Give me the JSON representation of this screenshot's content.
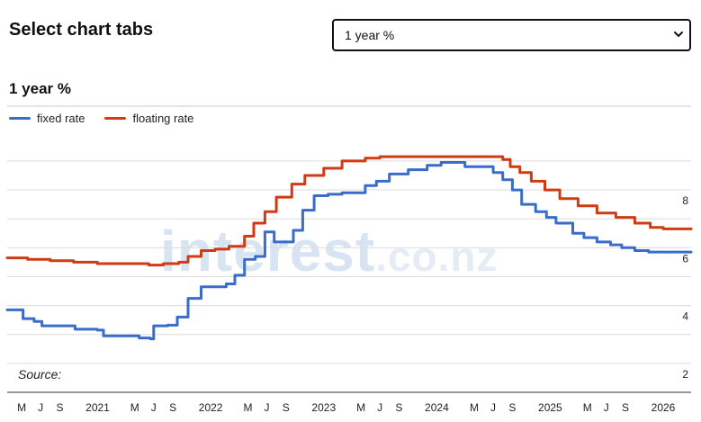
{
  "header": {
    "title": "Select chart tabs"
  },
  "tab_select": {
    "selected": "1 year %"
  },
  "source": {
    "label": "Source:"
  },
  "watermark": {
    "main": "interest",
    "domain": ".co.nz"
  },
  "chart_data": {
    "type": "line",
    "title": "1 year %",
    "xlabel": "",
    "ylabel": "",
    "ylim": [
      1.0,
      9.9
    ],
    "yticks": [
      2,
      4,
      6,
      8
    ],
    "xlim": [
      "2020-03-15",
      "2026-04-01"
    ],
    "xticks": [
      {
        "date": "2020-05-01",
        "label": "M"
      },
      {
        "date": "2020-07-01",
        "label": "J"
      },
      {
        "date": "2020-09-01",
        "label": "S"
      },
      {
        "date": "2021-01-01",
        "label": "2021"
      },
      {
        "date": "2021-05-01",
        "label": "M"
      },
      {
        "date": "2021-07-01",
        "label": "J"
      },
      {
        "date": "2021-09-01",
        "label": "S"
      },
      {
        "date": "2022-01-01",
        "label": "2022"
      },
      {
        "date": "2022-05-01",
        "label": "M"
      },
      {
        "date": "2022-07-01",
        "label": "J"
      },
      {
        "date": "2022-09-01",
        "label": "S"
      },
      {
        "date": "2023-01-01",
        "label": "2023"
      },
      {
        "date": "2023-05-01",
        "label": "M"
      },
      {
        "date": "2023-07-01",
        "label": "J"
      },
      {
        "date": "2023-09-01",
        "label": "S"
      },
      {
        "date": "2024-01-01",
        "label": "2024"
      },
      {
        "date": "2024-05-01",
        "label": "M"
      },
      {
        "date": "2024-07-01",
        "label": "J"
      },
      {
        "date": "2024-09-01",
        "label": "S"
      },
      {
        "date": "2025-01-01",
        "label": "2025"
      },
      {
        "date": "2025-05-01",
        "label": "M"
      },
      {
        "date": "2025-07-01",
        "label": "J"
      },
      {
        "date": "2025-09-01",
        "label": "S"
      },
      {
        "date": "2026-01-01",
        "label": "2026"
      }
    ],
    "grid": true,
    "legend_position": "top-left",
    "series": [
      {
        "name": "fixed rate",
        "color": "#3a6cc9",
        "points": [
          [
            "2020-03-15",
            3.85
          ],
          [
            "2020-04-15",
            3.85
          ],
          [
            "2020-05-05",
            3.55
          ],
          [
            "2020-06-10",
            3.45
          ],
          [
            "2020-07-05",
            3.3
          ],
          [
            "2020-08-15",
            3.3
          ],
          [
            "2020-09-25",
            3.3
          ],
          [
            "2020-10-20",
            3.18
          ],
          [
            "2020-12-31",
            3.15
          ],
          [
            "2021-01-20",
            2.95
          ],
          [
            "2021-03-15",
            2.95
          ],
          [
            "2021-05-15",
            2.88
          ],
          [
            "2021-06-20",
            2.85
          ],
          [
            "2021-07-01",
            3.3
          ],
          [
            "2021-08-15",
            3.32
          ],
          [
            "2021-09-15",
            3.6
          ],
          [
            "2021-10-20",
            4.25
          ],
          [
            "2021-12-01",
            4.65
          ],
          [
            "2022-01-15",
            4.65
          ],
          [
            "2022-02-20",
            4.75
          ],
          [
            "2022-03-20",
            5.05
          ],
          [
            "2022-04-20",
            5.6
          ],
          [
            "2022-05-25",
            5.7
          ],
          [
            "2022-06-25",
            6.55
          ],
          [
            "2022-07-25",
            6.2
          ],
          [
            "2022-08-25",
            6.2
          ],
          [
            "2022-09-25",
            6.6
          ],
          [
            "2022-10-25",
            7.3
          ],
          [
            "2022-12-01",
            7.8
          ],
          [
            "2023-01-15",
            7.85
          ],
          [
            "2023-03-01",
            7.9
          ],
          [
            "2023-04-01",
            7.9
          ],
          [
            "2023-05-15",
            8.15
          ],
          [
            "2023-06-20",
            8.3
          ],
          [
            "2023-08-01",
            8.55
          ],
          [
            "2023-10-01",
            8.7
          ],
          [
            "2023-12-01",
            8.85
          ],
          [
            "2024-01-15",
            8.95
          ],
          [
            "2024-03-01",
            8.95
          ],
          [
            "2024-04-01",
            8.8
          ],
          [
            "2024-05-15",
            8.8
          ],
          [
            "2024-07-01",
            8.6
          ],
          [
            "2024-08-01",
            8.35
          ],
          [
            "2024-09-01",
            8.0
          ],
          [
            "2024-10-01",
            7.5
          ],
          [
            "2024-11-15",
            7.25
          ],
          [
            "2024-12-20",
            7.05
          ],
          [
            "2025-01-20",
            6.85
          ],
          [
            "2025-03-15",
            6.5
          ],
          [
            "2025-04-20",
            6.35
          ],
          [
            "2025-06-01",
            6.2
          ],
          [
            "2025-07-15",
            6.1
          ],
          [
            "2025-08-20",
            6.0
          ],
          [
            "2025-10-01",
            5.9
          ],
          [
            "2025-11-15",
            5.85
          ],
          [
            "2026-01-01",
            5.85
          ],
          [
            "2026-04-01",
            5.85
          ]
        ]
      },
      {
        "name": "floating rate",
        "color": "#d13b14",
        "points": [
          [
            "2020-03-15",
            5.65
          ],
          [
            "2020-05-20",
            5.6
          ],
          [
            "2020-08-01",
            5.55
          ],
          [
            "2020-10-15",
            5.5
          ],
          [
            "2020-12-31",
            5.45
          ],
          [
            "2021-02-01",
            5.45
          ],
          [
            "2021-04-15",
            5.45
          ],
          [
            "2021-06-15",
            5.4
          ],
          [
            "2021-08-01",
            5.45
          ],
          [
            "2021-09-20",
            5.5
          ],
          [
            "2021-10-20",
            5.7
          ],
          [
            "2021-12-01",
            5.9
          ],
          [
            "2022-01-15",
            5.95
          ],
          [
            "2022-03-01",
            6.05
          ],
          [
            "2022-04-20",
            6.4
          ],
          [
            "2022-05-20",
            6.85
          ],
          [
            "2022-06-25",
            7.25
          ],
          [
            "2022-08-01",
            7.75
          ],
          [
            "2022-09-20",
            8.2
          ],
          [
            "2022-11-01",
            8.5
          ],
          [
            "2023-01-01",
            8.75
          ],
          [
            "2023-03-01",
            9.0
          ],
          [
            "2023-05-15",
            9.1
          ],
          [
            "2023-07-01",
            9.15
          ],
          [
            "2023-09-01",
            9.15
          ],
          [
            "2024-01-01",
            9.15
          ],
          [
            "2024-04-01",
            9.15
          ],
          [
            "2024-07-10",
            9.15
          ],
          [
            "2024-08-01",
            9.05
          ],
          [
            "2024-08-25",
            8.8
          ],
          [
            "2024-09-25",
            8.6
          ],
          [
            "2024-11-01",
            8.3
          ],
          [
            "2024-12-15",
            8.0
          ],
          [
            "2025-02-01",
            7.7
          ],
          [
            "2025-04-01",
            7.45
          ],
          [
            "2025-06-01",
            7.2
          ],
          [
            "2025-08-01",
            7.05
          ],
          [
            "2025-10-01",
            6.85
          ],
          [
            "2025-11-20",
            6.7
          ],
          [
            "2026-01-01",
            6.65
          ],
          [
            "2026-04-01",
            6.65
          ]
        ]
      }
    ]
  }
}
